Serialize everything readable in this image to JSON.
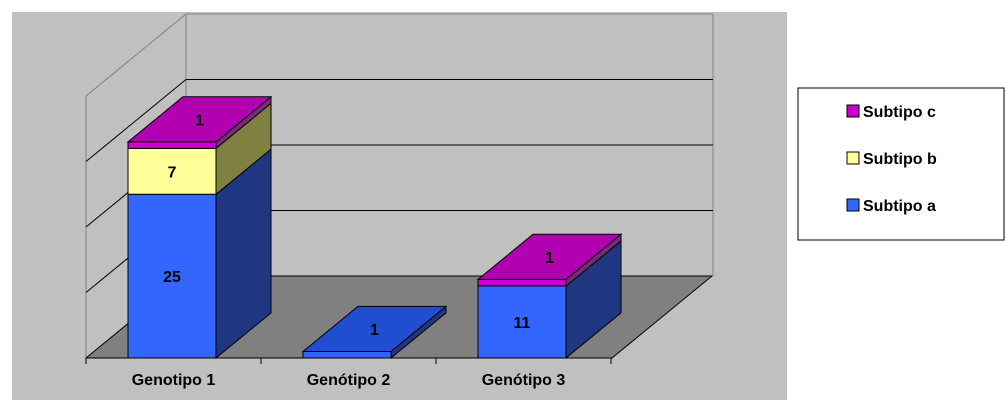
{
  "chart_data": {
    "type": "bar",
    "stacked": true,
    "three_d": true,
    "categories": [
      "Genotipo 1",
      "Genótipo 2",
      "Genótipo 3"
    ],
    "series": [
      {
        "name": "Subtipo a",
        "values": [
          25,
          1,
          11
        ]
      },
      {
        "name": "Subtipo b",
        "values": [
          7,
          0,
          0
        ]
      },
      {
        "name": "Subtipo c",
        "values": [
          1,
          0,
          1
        ]
      }
    ],
    "value_labels": [
      [
        "25",
        "1",
        "11"
      ],
      [
        "7",
        "",
        ""
      ],
      [
        "1",
        "",
        "1"
      ]
    ],
    "ylim": [
      0,
      40
    ],
    "grid": true,
    "legend_position": "right",
    "legend_order": [
      2,
      1,
      0
    ],
    "colors": {
      "plot_background": "#c0c0c0",
      "floor": "#808080",
      "gridline": "#000000",
      "series_front": [
        "#3366ff",
        "#ffff99",
        "#cc00cc"
      ],
      "series_side": [
        "#1f3780",
        "#808040",
        "#7a2a7a"
      ],
      "series_top": [
        "#1f4fd0",
        "#cccc66",
        "#b000b0"
      ]
    }
  }
}
